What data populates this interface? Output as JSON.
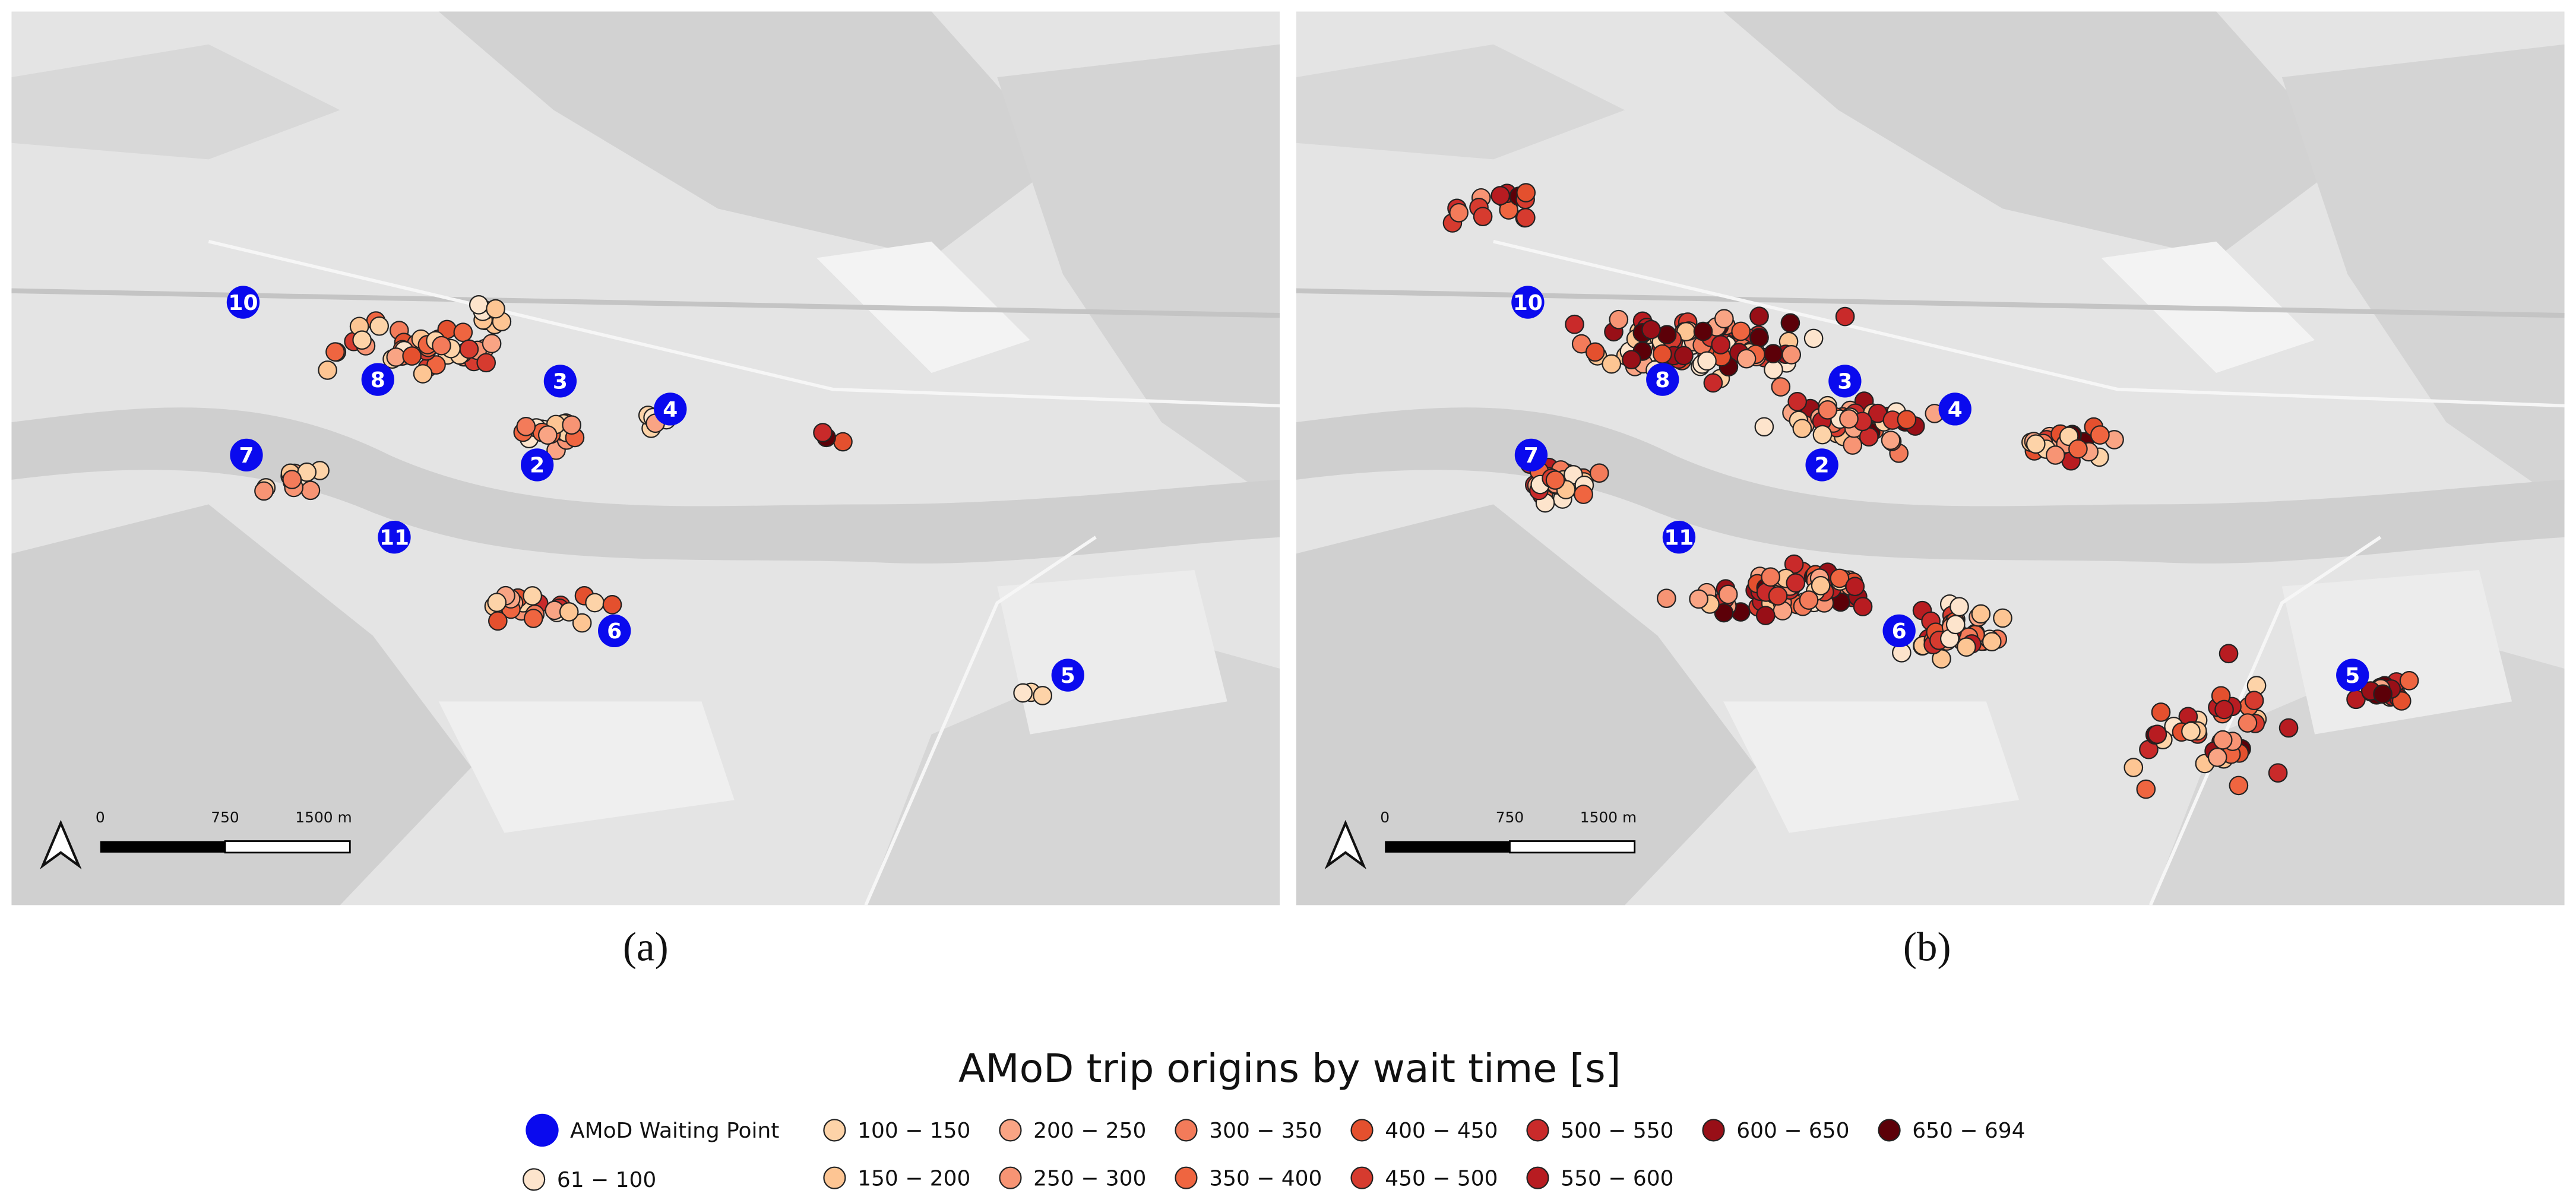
{
  "panels": [
    {
      "label": "(a)",
      "scale_bar": [
        "0",
        "750",
        "1500 m"
      ],
      "waiting_points": [
        "10",
        "8",
        "3",
        "4",
        "2",
        "7",
        "11",
        "6",
        "5"
      ]
    },
    {
      "label": "(b)",
      "scale_bar": [
        "0",
        "750",
        "1500 m"
      ],
      "waiting_points": [
        "10",
        "8",
        "3",
        "4",
        "2",
        "7",
        "11",
        "6",
        "5"
      ]
    }
  ],
  "legend": {
    "title": "AMoD trip origins by wait time [s]",
    "items": [
      {
        "label": "AMoD Waiting Point",
        "color": "#0a0aee"
      },
      {
        "label": "61 − 100",
        "color": "#fde4cc"
      },
      {
        "label": "100 − 150",
        "color": "#fdd3a8"
      },
      {
        "label": "150 − 200",
        "color": "#fdc593"
      },
      {
        "label": "200 − 250",
        "color": "#f9a484"
      },
      {
        "label": "250 − 300",
        "color": "#f79474"
      },
      {
        "label": "300 − 350",
        "color": "#f37b5a"
      },
      {
        "label": "350 − 400",
        "color": "#ef6540"
      },
      {
        "label": "400 − 450",
        "color": "#e4502e"
      },
      {
        "label": "450 − 500",
        "color": "#d63b2f"
      },
      {
        "label": "500 − 550",
        "color": "#c92a2a"
      },
      {
        "label": "550 − 600",
        "color": "#b81c21"
      },
      {
        "label": "600 − 650",
        "color": "#980f17"
      },
      {
        "label": "650 − 694",
        "color": "#5c0008"
      }
    ]
  }
}
